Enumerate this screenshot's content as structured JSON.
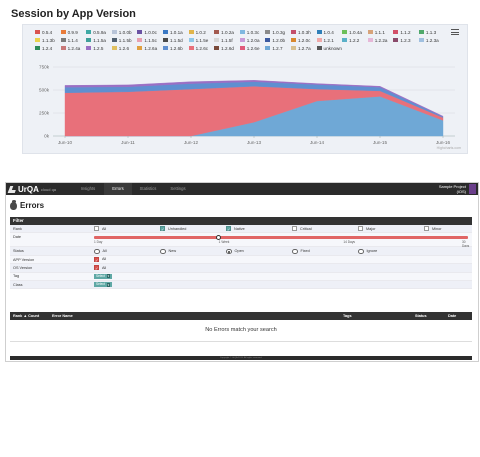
{
  "session_chart": {
    "title": "Session by App Version",
    "credit": "Highcharts.com",
    "chart_data": {
      "type": "area",
      "stacked": true,
      "x": [
        "Jun-10",
        "Jun-11",
        "Jun-12",
        "Jun-13",
        "Jun-14",
        "Jun-15",
        "Jun-16"
      ],
      "ylim": [
        0,
        750
      ],
      "yticks": [
        "0k",
        "250k",
        "500k",
        "750k"
      ],
      "grid": true,
      "legend_position": "top",
      "series": [
        {
          "name": "1.2.7",
          "color": "#6fa8d6",
          "values": [
            0,
            0,
            0,
            150,
            380,
            430,
            170
          ]
        },
        {
          "name": "1.2.6c",
          "color": "#e8707a",
          "values": [
            470,
            480,
            510,
            390,
            130,
            60,
            30
          ]
        },
        {
          "name": "1.2.6b",
          "color": "#5f8fd0",
          "values": [
            60,
            55,
            60,
            50,
            50,
            40,
            10
          ]
        },
        {
          "name": "1.2.5",
          "color": "#9a6fc4",
          "values": [
            20,
            20,
            20,
            15,
            10,
            10,
            5
          ]
        }
      ]
    },
    "legend": [
      {
        "label": "0.5.4",
        "color": "#d9534f"
      },
      {
        "label": "0.9.9",
        "color": "#e87b3a"
      },
      {
        "label": "0.5.9a",
        "color": "#3fa9a5"
      },
      {
        "label": "1.0.0b",
        "color": "#b8c4d8"
      },
      {
        "label": "1.0.0c",
        "color": "#6a52a3"
      },
      {
        "label": "1.0.1a",
        "color": "#3a78c4"
      },
      {
        "label": "1.0.2",
        "color": "#e0b44a"
      },
      {
        "label": "1.0.2a",
        "color": "#a35a4f"
      },
      {
        "label": "1.0.3c",
        "color": "#7fb7e0"
      },
      {
        "label": "1.0.3g",
        "color": "#8a8a8a"
      },
      {
        "label": "1.0.3h",
        "color": "#c44f6a"
      },
      {
        "label": "1.0.4",
        "color": "#2f7fb8"
      },
      {
        "label": "1.0.4a",
        "color": "#6cbf5a"
      },
      {
        "label": "1.1.1",
        "color": "#d7a37a"
      },
      {
        "label": "1.1.2",
        "color": "#d24f68"
      },
      {
        "label": "1.1.3",
        "color": "#4fa86b"
      },
      {
        "label": "1.1.3b",
        "color": "#e9d24d"
      },
      {
        "label": "1.1.4",
        "color": "#7a7a7a"
      },
      {
        "label": "1.1.5a",
        "color": "#3f9f9a"
      },
      {
        "label": "1.1.5b",
        "color": "#506070"
      },
      {
        "label": "1.1.5c",
        "color": "#e8a0b0"
      },
      {
        "label": "1.1.5d",
        "color": "#4a4a4a"
      },
      {
        "label": "1.1.5e",
        "color": "#8fc8e8"
      },
      {
        "label": "1.1.5f",
        "color": "#d6d6d6"
      },
      {
        "label": "1.2.0a",
        "color": "#c89bd8"
      },
      {
        "label": "1.2.0b",
        "color": "#3b5aa0"
      },
      {
        "label": "1.2.0c",
        "color": "#d9882f"
      },
      {
        "label": "1.2.1",
        "color": "#f0a8a8"
      },
      {
        "label": "1.2.2",
        "color": "#5ab0c8"
      },
      {
        "label": "1.2.2a",
        "color": "#e6b8d8"
      },
      {
        "label": "1.2.3",
        "color": "#8a4a6a"
      },
      {
        "label": "1.2.3a",
        "color": "#a0c0e0"
      },
      {
        "label": "1.2.4",
        "color": "#2e8a5a"
      },
      {
        "label": "1.2.4a",
        "color": "#c87878"
      },
      {
        "label": "1.2.5",
        "color": "#9a6fc4"
      },
      {
        "label": "1.2.6",
        "color": "#e0c060"
      },
      {
        "label": "1.2.6a",
        "color": "#e0a040"
      },
      {
        "label": "1.2.6b",
        "color": "#5f8fd0"
      },
      {
        "label": "1.2.6c",
        "color": "#e8707a"
      },
      {
        "label": "1.2.6d",
        "color": "#7a4a3a"
      },
      {
        "label": "1.2.6e",
        "color": "#e05a7a"
      },
      {
        "label": "1.2.7",
        "color": "#6fa8d6"
      },
      {
        "label": "1.2.7a",
        "color": "#d8c090"
      },
      {
        "label": "unknown",
        "color": "#555555"
      }
    ]
  },
  "app": {
    "logo_text": "UrQA",
    "logo_sub": "cloud qa",
    "nav_tabs": [
      "Insights",
      "Errors",
      "Statistics",
      "Settings"
    ],
    "active_tab": "Errors",
    "project_name": "Sample Project",
    "project_platform": "(iOS)",
    "page_title": "Errors",
    "filter": {
      "title": "Filter",
      "rank": {
        "label": "Rank",
        "options": [
          {
            "text": "All",
            "checked": false
          },
          {
            "text": "Unhandled",
            "checked": true
          },
          {
            "text": "Native",
            "checked": true
          },
          {
            "text": "Critical",
            "checked": false
          },
          {
            "text": "Major",
            "checked": false
          },
          {
            "text": "Minor",
            "checked": false
          }
        ]
      },
      "date": {
        "label": "Date",
        "ticks": [
          "1 Day",
          "1 Week",
          "14 Days",
          "30 Days"
        ],
        "selected_index": 1
      },
      "status": {
        "label": "Status",
        "options": [
          "All",
          "New",
          "Open",
          "Fixed",
          "Ignore"
        ],
        "selected": "Open"
      },
      "app_version": {
        "label": "APP Version",
        "value": "All"
      },
      "os_version": {
        "label": "OS Version",
        "value": "All"
      },
      "tag": {
        "label": "Tag",
        "value": "Select"
      },
      "class": {
        "label": "Class",
        "value": "Select"
      }
    },
    "table": {
      "columns": [
        "Rank ▲ Count",
        "Error Name",
        "Tags",
        "Status",
        "Date"
      ],
      "empty_message": "No Errors match your search"
    },
    "footer": "Copyright © UrQA 2013. All rights reserved."
  }
}
